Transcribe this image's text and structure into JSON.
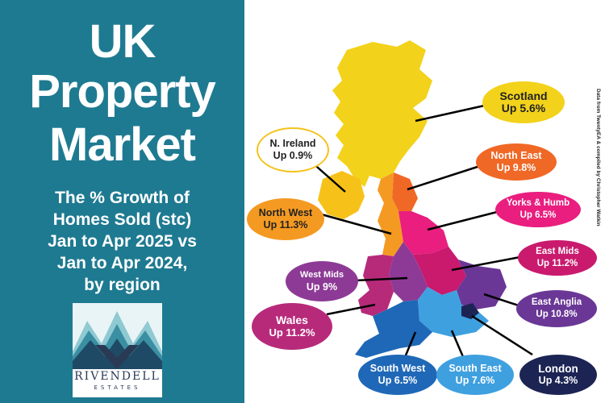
{
  "panel": {
    "title_line1": "UK",
    "title_line2": "Property",
    "title_line3": "Market",
    "subtitle_lines": [
      "The % Growth of",
      "Homes Sold (stc)",
      "Jan to Apr 2025 vs",
      "Jan to Apr 2024,",
      "by region"
    ]
  },
  "logo": {
    "name": "RIVENDELL",
    "tagline": "ESTATES"
  },
  "credit": "Data from TwentyEA & compiled by Christopher Watkin",
  "colors": {
    "panel_bg": "#1e7a91",
    "scotland": "#f2d21b",
    "north_east": "#f06826",
    "yorks_humb": "#e91e7f",
    "north_west": "#f49a22",
    "n_ireland": "#f6c21a",
    "east_mids": "#c91a6e",
    "west_mids": "#8d3a96",
    "wales": "#b72a7a",
    "east_anglia": "#6a3796",
    "london": "#1c2454",
    "south_east": "#3fa0e0",
    "south_west": "#1f68b7"
  },
  "regions": [
    {
      "key": "scotland",
      "name": "Scotland",
      "value": "Up 5.6%"
    },
    {
      "key": "n_ireland",
      "name": "N. Ireland",
      "value": "Up 0.9%"
    },
    {
      "key": "north_east",
      "name": "North East",
      "value": "Up  9.8%"
    },
    {
      "key": "yorks_humb",
      "name": "Yorks & Humb",
      "value": "Up 6.5%"
    },
    {
      "key": "north_west",
      "name": "North West",
      "value": "Up 11.3%"
    },
    {
      "key": "east_mids",
      "name": "East Mids",
      "value": "Up 11.2%"
    },
    {
      "key": "west_mids",
      "name": "West Mids",
      "value": "Up 9%"
    },
    {
      "key": "east_anglia",
      "name": "East Anglia",
      "value": "Up 10.8%"
    },
    {
      "key": "wales",
      "name": "Wales",
      "value": "Up 11.2%"
    },
    {
      "key": "south_west",
      "name": "South West",
      "value": "Up 6.5%"
    },
    {
      "key": "south_east",
      "name": "South East",
      "value": "Up 7.6%"
    },
    {
      "key": "london",
      "name": "London",
      "value": "Up 4.3%"
    }
  ]
}
